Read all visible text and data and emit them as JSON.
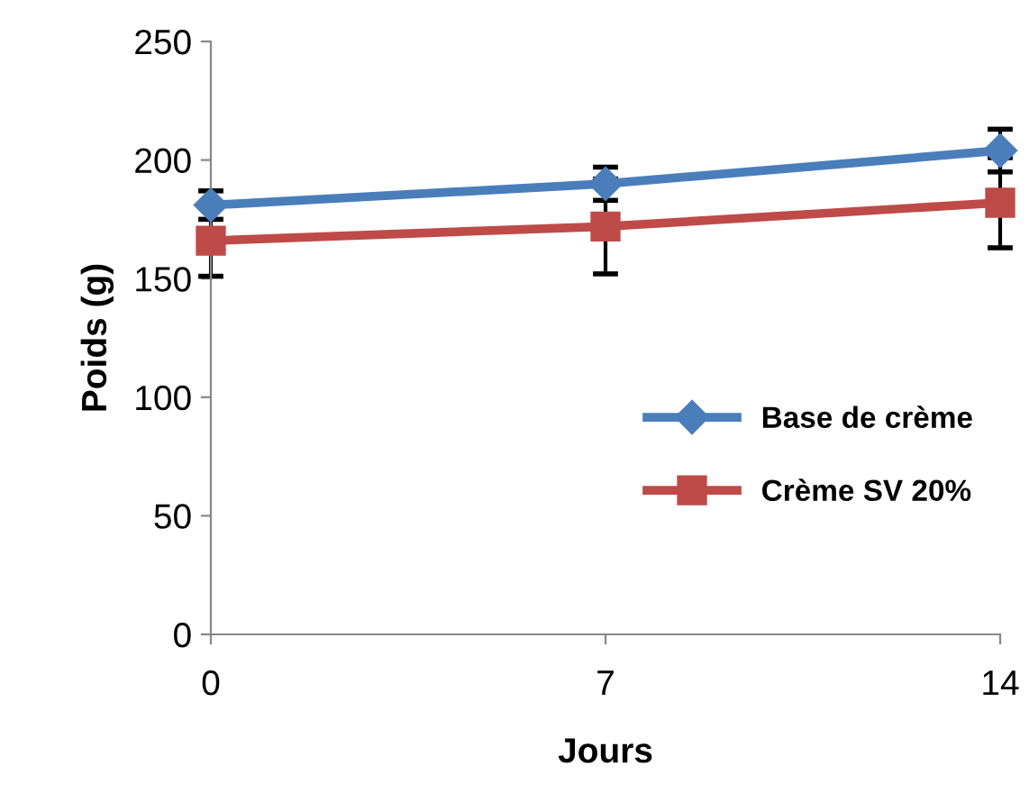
{
  "chart_data": {
    "type": "line",
    "xlabel": "Jours",
    "ylabel": "Poids (g)",
    "x": [
      0,
      7,
      14
    ],
    "xlim": [
      0,
      14
    ],
    "xticks": [
      0,
      7,
      14
    ],
    "ylim": [
      0,
      250
    ],
    "yticks": [
      0,
      50,
      100,
      150,
      200,
      250
    ],
    "grid": false,
    "legend": "right",
    "line_style": "solid",
    "series": [
      {
        "name": "Base de crème",
        "color": "#4a7ebb",
        "marker": "diamond",
        "values": [
          181,
          190,
          204
        ],
        "errors": [
          6,
          7,
          9
        ]
      },
      {
        "name": "Crème SV 20%",
        "color": "#be4b48",
        "marker": "square",
        "values": [
          166,
          172,
          182
        ],
        "errors": [
          15,
          20,
          19
        ]
      }
    ]
  }
}
